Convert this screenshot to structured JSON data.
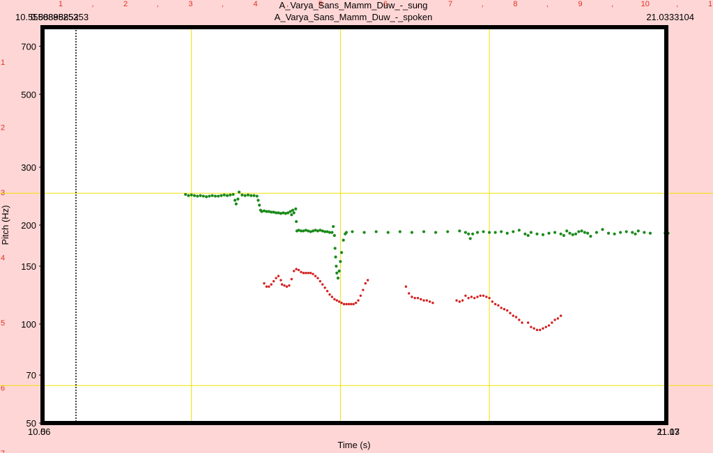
{
  "header": {
    "title_sung": "A_Varya_Sans_Mamm_Duw_-_sung",
    "title_spoken": "A_Varya_Sans_Mamm_Duw_-_spoken",
    "time_left": "10.5550885253",
    "time_left_overlap": "0.8889885253",
    "time_right": "21.0333104"
  },
  "ruler": {
    "top_numbers": [
      "1",
      "2",
      "3",
      "4",
      "5",
      "6",
      "7",
      "8",
      "9",
      "10",
      "1"
    ],
    "side_numbers": [
      "1",
      "2",
      "3",
      "4",
      "5",
      "6",
      "7"
    ]
  },
  "axes": {
    "ylabel": "Pitch (Hz)",
    "xlabel": "Time (s)",
    "x_start_label": "10.56",
    "x_start_overlap": "0",
    "x_end_label": "21.03",
    "x_end_overlap": "11.17"
  },
  "colors": {
    "background": "#ffd6d6",
    "grid": "#f0e000",
    "sung": "#1a8a1a",
    "spoken": "#d42020",
    "ruler_text": "#e03020"
  },
  "chart_data": {
    "type": "scatter",
    "xlim": [
      0,
      10.47
    ],
    "ylim": [
      50,
      800
    ],
    "yscale": "log",
    "yticks": [
      50,
      70,
      100,
      150,
      200,
      300,
      500,
      700
    ],
    "grid": true,
    "series": [
      {
        "name": "A_Varya_Sans_Mamm_Duw_-_sung",
        "color": "#1a8a1a",
        "points": [
          [
            2.4,
            248
          ],
          [
            2.45,
            246
          ],
          [
            2.5,
            247
          ],
          [
            2.55,
            246
          ],
          [
            2.6,
            245
          ],
          [
            2.65,
            246
          ],
          [
            2.7,
            245
          ],
          [
            2.75,
            244
          ],
          [
            2.8,
            245
          ],
          [
            2.85,
            246
          ],
          [
            2.9,
            245
          ],
          [
            2.95,
            245
          ],
          [
            3.0,
            246
          ],
          [
            3.05,
            247
          ],
          [
            3.1,
            246
          ],
          [
            3.15,
            247
          ],
          [
            3.2,
            248
          ],
          [
            3.23,
            238
          ],
          [
            3.25,
            232
          ],
          [
            3.28,
            240
          ],
          [
            3.3,
            252
          ],
          [
            3.35,
            247
          ],
          [
            3.4,
            246
          ],
          [
            3.45,
            247
          ],
          [
            3.5,
            246
          ],
          [
            3.55,
            246
          ],
          [
            3.6,
            245
          ],
          [
            3.62,
            238
          ],
          [
            3.64,
            230
          ],
          [
            3.66,
            222
          ],
          [
            3.68,
            220
          ],
          [
            3.72,
            221
          ],
          [
            3.76,
            220
          ],
          [
            3.8,
            220
          ],
          [
            3.84,
            219
          ],
          [
            3.88,
            219
          ],
          [
            3.92,
            218
          ],
          [
            3.96,
            218
          ],
          [
            4.0,
            217
          ],
          [
            4.04,
            218
          ],
          [
            4.08,
            217
          ],
          [
            4.12,
            218
          ],
          [
            4.16,
            220
          ],
          [
            4.18,
            215
          ],
          [
            4.2,
            222
          ],
          [
            4.22,
            218
          ],
          [
            4.25,
            224
          ],
          [
            4.26,
            205
          ],
          [
            4.27,
            192
          ],
          [
            4.3,
            193
          ],
          [
            4.34,
            192
          ],
          [
            4.38,
            192
          ],
          [
            4.42,
            193
          ],
          [
            4.46,
            192
          ],
          [
            4.5,
            191
          ],
          [
            4.54,
            192
          ],
          [
            4.58,
            193
          ],
          [
            4.62,
            192
          ],
          [
            4.66,
            193
          ],
          [
            4.7,
            192
          ],
          [
            4.74,
            191
          ],
          [
            4.78,
            191
          ],
          [
            4.82,
            190
          ],
          [
            4.86,
            190
          ],
          [
            4.88,
            198
          ],
          [
            4.9,
            186
          ],
          [
            4.91,
            170
          ],
          [
            4.92,
            160
          ],
          [
            4.93,
            150
          ],
          [
            4.94,
            143
          ],
          [
            4.96,
            138
          ],
          [
            4.98,
            145
          ],
          [
            5.0,
            155
          ],
          [
            5.02,
            165
          ],
          [
            5.05,
            180
          ],
          [
            5.08,
            188
          ],
          [
            5.1,
            190
          ],
          [
            5.2,
            191
          ],
          [
            5.4,
            190
          ],
          [
            5.6,
            191
          ],
          [
            5.8,
            190
          ],
          [
            6.0,
            191
          ],
          [
            6.2,
            190
          ],
          [
            6.4,
            191
          ],
          [
            6.6,
            190
          ],
          [
            6.8,
            191
          ],
          [
            7.0,
            192
          ],
          [
            7.1,
            190
          ],
          [
            7.15,
            188
          ],
          [
            7.18,
            182
          ],
          [
            7.22,
            188
          ],
          [
            7.3,
            190
          ],
          [
            7.4,
            191
          ],
          [
            7.5,
            190
          ],
          [
            7.6,
            190
          ],
          [
            7.7,
            191
          ],
          [
            7.8,
            189
          ],
          [
            7.9,
            191
          ],
          [
            8.0,
            193
          ],
          [
            8.1,
            188
          ],
          [
            8.15,
            186
          ],
          [
            8.2,
            190
          ],
          [
            8.3,
            188
          ],
          [
            8.4,
            187
          ],
          [
            8.5,
            189
          ],
          [
            8.6,
            190
          ],
          [
            8.7,
            188
          ],
          [
            8.75,
            186
          ],
          [
            8.8,
            192
          ],
          [
            8.85,
            189
          ],
          [
            8.9,
            187
          ],
          [
            8.95,
            188
          ],
          [
            9.0,
            191
          ],
          [
            9.05,
            192
          ],
          [
            9.1,
            190
          ],
          [
            9.15,
            189
          ],
          [
            9.2,
            185
          ],
          [
            9.3,
            190
          ],
          [
            9.4,
            194
          ],
          [
            9.5,
            189
          ],
          [
            9.6,
            188
          ],
          [
            9.7,
            190
          ],
          [
            9.8,
            191
          ],
          [
            9.9,
            190
          ],
          [
            9.95,
            188
          ],
          [
            10.0,
            192
          ],
          [
            10.1,
            190
          ],
          [
            10.2,
            189
          ],
          [
            10.45,
            189
          ],
          [
            10.5,
            189
          ]
        ]
      },
      {
        "name": "A_Varya_Sans_Mamm_Duw_-_spoken",
        "color": "#d42020",
        "points": [
          [
            3.72,
            133
          ],
          [
            3.76,
            130
          ],
          [
            3.8,
            130
          ],
          [
            3.84,
            132
          ],
          [
            3.88,
            135
          ],
          [
            3.92,
            138
          ],
          [
            3.96,
            140
          ],
          [
            4.0,
            136
          ],
          [
            4.02,
            132
          ],
          [
            4.06,
            131
          ],
          [
            4.1,
            130
          ],
          [
            4.14,
            131
          ],
          [
            4.18,
            137
          ],
          [
            4.22,
            145
          ],
          [
            4.26,
            147
          ],
          [
            4.3,
            146
          ],
          [
            4.34,
            144
          ],
          [
            4.38,
            143
          ],
          [
            4.42,
            143
          ],
          [
            4.46,
            143
          ],
          [
            4.5,
            143
          ],
          [
            4.54,
            142
          ],
          [
            4.58,
            140
          ],
          [
            4.62,
            138
          ],
          [
            4.66,
            135
          ],
          [
            4.7,
            132
          ],
          [
            4.74,
            129
          ],
          [
            4.78,
            126
          ],
          [
            4.82,
            123
          ],
          [
            4.86,
            121
          ],
          [
            4.9,
            119
          ],
          [
            4.94,
            118
          ],
          [
            4.98,
            117
          ],
          [
            5.02,
            116
          ],
          [
            5.06,
            115
          ],
          [
            5.1,
            115
          ],
          [
            5.14,
            115
          ],
          [
            5.18,
            115
          ],
          [
            5.22,
            115
          ],
          [
            5.26,
            116
          ],
          [
            5.3,
            118
          ],
          [
            5.34,
            122
          ],
          [
            5.38,
            127
          ],
          [
            5.42,
            133
          ],
          [
            5.46,
            136
          ],
          [
            6.1,
            130
          ],
          [
            6.15,
            124
          ],
          [
            6.2,
            121
          ],
          [
            6.25,
            120
          ],
          [
            6.3,
            120
          ],
          [
            6.35,
            119
          ],
          [
            6.4,
            118
          ],
          [
            6.45,
            118
          ],
          [
            6.5,
            117
          ],
          [
            6.55,
            116
          ],
          [
            6.95,
            118
          ],
          [
            7.0,
            117
          ],
          [
            7.05,
            118
          ],
          [
            7.1,
            122
          ],
          [
            7.15,
            120
          ],
          [
            7.2,
            121
          ],
          [
            7.25,
            120
          ],
          [
            7.3,
            121
          ],
          [
            7.35,
            122
          ],
          [
            7.4,
            122
          ],
          [
            7.45,
            121
          ],
          [
            7.5,
            120
          ],
          [
            7.55,
            117
          ],
          [
            7.6,
            115
          ],
          [
            7.65,
            114
          ],
          [
            7.7,
            112
          ],
          [
            7.75,
            111
          ],
          [
            7.8,
            110
          ],
          [
            7.85,
            108
          ],
          [
            7.9,
            106
          ],
          [
            7.95,
            105
          ],
          [
            8.0,
            103
          ],
          [
            8.05,
            101
          ],
          [
            8.15,
            101
          ],
          [
            8.2,
            98
          ],
          [
            8.25,
            97
          ],
          [
            8.3,
            96
          ],
          [
            8.35,
            96
          ],
          [
            8.4,
            97
          ],
          [
            8.45,
            98
          ],
          [
            8.5,
            99
          ],
          [
            8.55,
            101
          ],
          [
            8.6,
            103
          ],
          [
            8.65,
            104
          ],
          [
            8.7,
            106
          ]
        ]
      }
    ]
  }
}
